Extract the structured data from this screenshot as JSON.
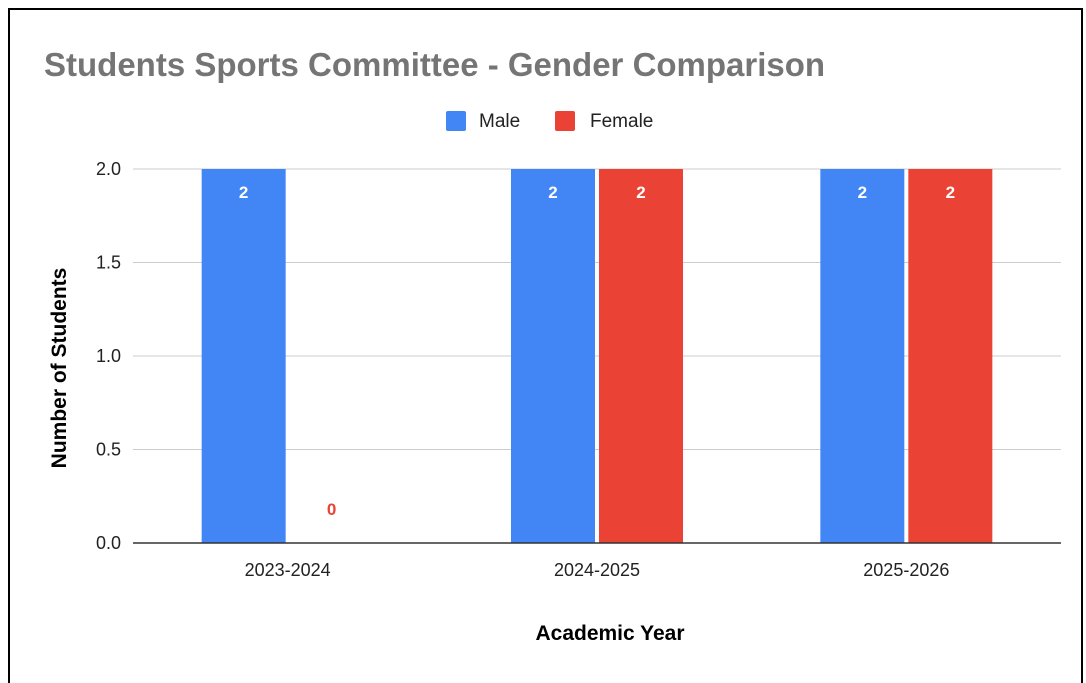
{
  "chart_data": {
    "type": "bar",
    "title": "Students Sports Committee - Gender Comparison",
    "xlabel": "Academic Year",
    "ylabel": "Number of Students",
    "categories": [
      "2023-2024",
      "2024-2025",
      "2025-2026"
    ],
    "series": [
      {
        "name": "Male",
        "color": "#4285F4",
        "values": [
          2,
          2,
          2
        ]
      },
      {
        "name": "Female",
        "color": "#EA4335",
        "values": [
          0,
          2,
          2
        ]
      }
    ],
    "ylim": [
      0,
      2
    ],
    "yticks": [
      "0.0",
      "0.5",
      "1.0",
      "1.5",
      "2.0"
    ],
    "ytick_values": [
      0,
      0.5,
      1,
      1.5,
      2
    ],
    "grid": true,
    "legend_position": "top-center",
    "data_labels": true
  }
}
